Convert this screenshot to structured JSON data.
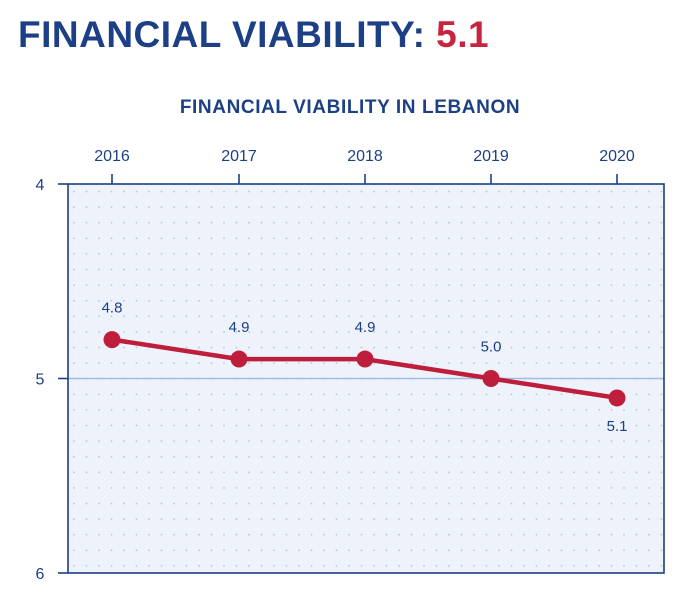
{
  "header": {
    "title_prefix": "FINANCIAL VIABILITY:",
    "score": "5.1"
  },
  "colors": {
    "title_blue": "#1c3f85",
    "score_red": "#c8233f",
    "line_red": "#be1e3c",
    "plot_background": "#eef3fb",
    "reference_line": "#9bbfe6"
  },
  "chart_data": {
    "type": "line",
    "title": "FINANCIAL VIABILITY IN LEBANON",
    "categories": [
      "2016",
      "2017",
      "2018",
      "2019",
      "2020"
    ],
    "series": [
      {
        "values": [
          4.8,
          4.9,
          4.9,
          5.0,
          5.1
        ]
      }
    ],
    "data_labels": [
      "4.8",
      "4.9",
      "4.9",
      "5.0",
      "5.1"
    ],
    "y_ticks": [
      4,
      5,
      6
    ],
    "y_tick_labels": [
      "4",
      "5",
      "6"
    ],
    "ylim": [
      4,
      6
    ],
    "y_inverted": true,
    "x_axis_position": "top",
    "reference_line": 5,
    "grid": "dotted",
    "xlabel": "",
    "ylabel": ""
  }
}
